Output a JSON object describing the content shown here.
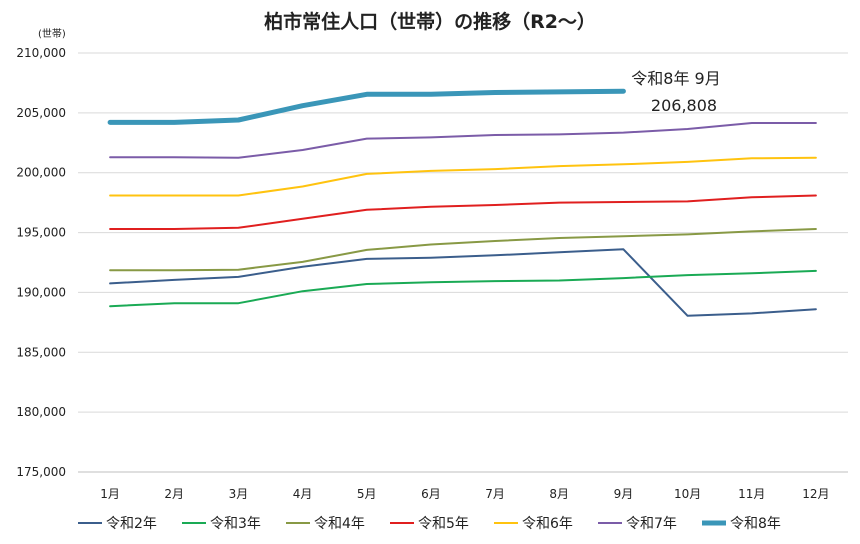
{
  "chart_data": {
    "type": "line",
    "title": "柏市常住人口（世帯）の推移（R2～）",
    "unit_label": "(世帯)",
    "xlabel": "",
    "ylabel": "",
    "categories": [
      "1月",
      "2月",
      "3月",
      "4月",
      "5月",
      "6月",
      "7月",
      "8月",
      "9月",
      "10月",
      "11月",
      "12月"
    ],
    "ylim": [
      175000,
      210000
    ],
    "yticks": [
      175000,
      180000,
      185000,
      190000,
      195000,
      200000,
      205000,
      210000
    ],
    "ytick_labels": [
      "175,000",
      "180,000",
      "185,000",
      "190,000",
      "195,000",
      "200,000",
      "205,000",
      "210,000"
    ],
    "grid": true,
    "legend_position": "bottom",
    "series": [
      {
        "name": "令和2年",
        "color": "#3b5e8c",
        "values": [
          190750,
          191050,
          191300,
          192150,
          192800,
          192900,
          193100,
          193350,
          193600,
          188050,
          188250,
          188600
        ]
      },
      {
        "name": "令和3年",
        "color": "#1aaa55",
        "values": [
          188850,
          189100,
          189100,
          190100,
          190700,
          190850,
          190950,
          191000,
          191200,
          191450,
          191600,
          191800
        ]
      },
      {
        "name": "令和4年",
        "color": "#889945",
        "values": [
          191850,
          191850,
          191900,
          192550,
          193550,
          194000,
          194300,
          194550,
          194700,
          194850,
          195100,
          195300
        ]
      },
      {
        "name": "令和5年",
        "color": "#e01f1f",
        "values": [
          195300,
          195300,
          195400,
          196150,
          196900,
          197150,
          197300,
          197500,
          197550,
          197600,
          197950,
          198100
        ]
      },
      {
        "name": "令和6年",
        "color": "#ffc30f",
        "values": [
          198100,
          198100,
          198100,
          198850,
          199900,
          200150,
          200300,
          200550,
          200700,
          200900,
          201200,
          201250
        ]
      },
      {
        "name": "令和7年",
        "color": "#7b5ca8",
        "values": [
          201300,
          201300,
          201250,
          201900,
          202850,
          202950,
          203150,
          203200,
          203350,
          203650,
          204150,
          204150
        ]
      },
      {
        "name": "令和8年",
        "color": "#3a96b8",
        "values": [
          204200,
          204200,
          204400,
          205600,
          206550,
          206550,
          206700,
          206750,
          206808,
          null,
          null,
          null
        ]
      }
    ],
    "annotation": {
      "line1": "令和8年 9月",
      "line2": "206,808"
    }
  }
}
